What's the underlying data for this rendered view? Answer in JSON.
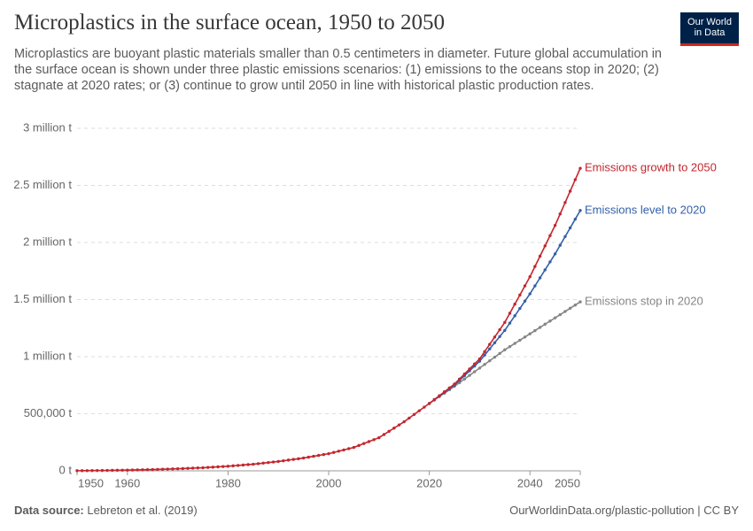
{
  "logo": [
    "Our World",
    "in Data"
  ],
  "footer": {
    "source_label": "Data source:",
    "source": "Lebreton et al. (2019)",
    "link": "OurWorldinData.org/plastic-pollution | CC BY"
  },
  "chart_data": {
    "type": "line",
    "title": "Microplastics in the surface ocean, 1950 to 2050",
    "subtitle": "Microplastics are buoyant plastic materials smaller than 0.5 centimeters in diameter. Future global accumulation in the surface ocean is shown under three plastic emissions scenarios: (1) emissions to the oceans stop in 2020; (2) stagnate at 2020 rates; or (3) continue to grow until 2050 in line with historical plastic production rates.",
    "x": [
      1950,
      1951,
      1952,
      1953,
      1954,
      1955,
      1956,
      1957,
      1958,
      1959,
      1960,
      1961,
      1962,
      1963,
      1964,
      1965,
      1966,
      1967,
      1968,
      1969,
      1970,
      1971,
      1972,
      1973,
      1974,
      1975,
      1976,
      1977,
      1978,
      1979,
      1980,
      1981,
      1982,
      1983,
      1984,
      1985,
      1986,
      1987,
      1988,
      1989,
      1990,
      1991,
      1992,
      1993,
      1994,
      1995,
      1996,
      1997,
      1998,
      1999,
      2000,
      2001,
      2002,
      2003,
      2004,
      2005,
      2006,
      2007,
      2008,
      2009,
      2010,
      2011,
      2012,
      2013,
      2014,
      2015,
      2016,
      2017,
      2018,
      2019,
      2020,
      2021,
      2022,
      2023,
      2024,
      2025,
      2026,
      2027,
      2028,
      2029,
      2030,
      2031,
      2032,
      2033,
      2034,
      2035,
      2036,
      2037,
      2038,
      2039,
      2040,
      2041,
      2042,
      2043,
      2044,
      2045,
      2046,
      2047,
      2048,
      2049,
      2050
    ],
    "xlim": [
      1950,
      2050
    ],
    "xticks": [
      1950,
      1960,
      1980,
      2000,
      2020,
      2040,
      2050
    ],
    "ylim": [
      0,
      3000000
    ],
    "yticks": [
      {
        "value": 0,
        "label": "0 t"
      },
      {
        "value": 500000,
        "label": "500,000 t"
      },
      {
        "value": 1000000,
        "label": "1 million t"
      },
      {
        "value": 1500000,
        "label": "1.5 million t"
      },
      {
        "value": 2000000,
        "label": "2 million t"
      },
      {
        "value": 2500000,
        "label": "2.5 million t"
      },
      {
        "value": 3000000,
        "label": "3 million t"
      }
    ],
    "grid": true,
    "series": [
      {
        "name": "Emissions stop in 2020",
        "color": "#858585",
        "values": [
          null,
          null,
          null,
          null,
          null,
          null,
          null,
          null,
          null,
          null,
          null,
          null,
          null,
          null,
          null,
          null,
          null,
          null,
          null,
          null,
          null,
          null,
          null,
          null,
          null,
          null,
          null,
          null,
          null,
          null,
          null,
          null,
          null,
          null,
          null,
          null,
          null,
          null,
          null,
          null,
          null,
          null,
          null,
          null,
          null,
          null,
          null,
          null,
          null,
          null,
          null,
          null,
          null,
          null,
          null,
          null,
          null,
          null,
          null,
          null,
          null,
          null,
          null,
          null,
          null,
          null,
          null,
          null,
          null,
          null,
          590000,
          620000,
          650000,
          680000,
          710000,
          740000,
          772000,
          804000,
          836000,
          868000,
          900000,
          932000,
          964000,
          996000,
          1028000,
          1060000,
          1088000,
          1116000,
          1144000,
          1172000,
          1200000,
          1228000,
          1256000,
          1284000,
          1312000,
          1340000,
          1368000,
          1396000,
          1424000,
          1452000,
          1480000
        ]
      },
      {
        "name": "Emissions level to 2020",
        "color": "#3360a9",
        "values": [
          null,
          null,
          null,
          null,
          null,
          null,
          null,
          null,
          null,
          null,
          null,
          null,
          null,
          null,
          null,
          null,
          null,
          null,
          null,
          null,
          null,
          null,
          null,
          null,
          null,
          null,
          null,
          null,
          null,
          null,
          null,
          null,
          null,
          null,
          null,
          null,
          null,
          null,
          null,
          null,
          null,
          null,
          null,
          null,
          null,
          null,
          null,
          null,
          null,
          null,
          null,
          null,
          null,
          null,
          null,
          null,
          null,
          null,
          null,
          null,
          null,
          null,
          null,
          null,
          null,
          null,
          null,
          null,
          null,
          null,
          590000,
          622000,
          654000,
          686000,
          718000,
          750000,
          792000,
          834000,
          876000,
          918000,
          960000,
          1014000,
          1068000,
          1122000,
          1176000,
          1230000,
          1294000,
          1358000,
          1422000,
          1486000,
          1550000,
          1620000,
          1690000,
          1760000,
          1830000,
          1900000,
          1976000,
          2052000,
          2128000,
          2204000,
          2280000
        ]
      },
      {
        "name": "Emissions growth to 2050",
        "color": "#c3262d",
        "values": [
          1000,
          1400,
          1800,
          2200,
          2600,
          3000,
          3600,
          4200,
          4800,
          5400,
          6000,
          7000,
          8000,
          9000,
          10000,
          11000,
          12400,
          13800,
          15200,
          16600,
          18000,
          19800,
          21600,
          23400,
          25200,
          27000,
          29600,
          32200,
          34800,
          37400,
          40000,
          43600,
          47200,
          50800,
          54400,
          58000,
          62800,
          67600,
          72400,
          77200,
          82000,
          88000,
          94000,
          100000,
          106000,
          112000,
          119600,
          127200,
          134800,
          142400,
          150000,
          161000,
          172000,
          183000,
          194000,
          205000,
          222000,
          239000,
          256000,
          273000,
          290000,
          318000,
          346000,
          374000,
          402000,
          430000,
          462000,
          494000,
          526000,
          558000,
          590000,
          624000,
          658000,
          692000,
          726000,
          760000,
          804000,
          848000,
          892000,
          936000,
          980000,
          1044000,
          1108000,
          1172000,
          1236000,
          1300000,
          1380000,
          1460000,
          1540000,
          1620000,
          1700000,
          1790000,
          1880000,
          1970000,
          2060000,
          2150000,
          2250000,
          2350000,
          2450000,
          2550000,
          2650000
        ]
      }
    ]
  }
}
